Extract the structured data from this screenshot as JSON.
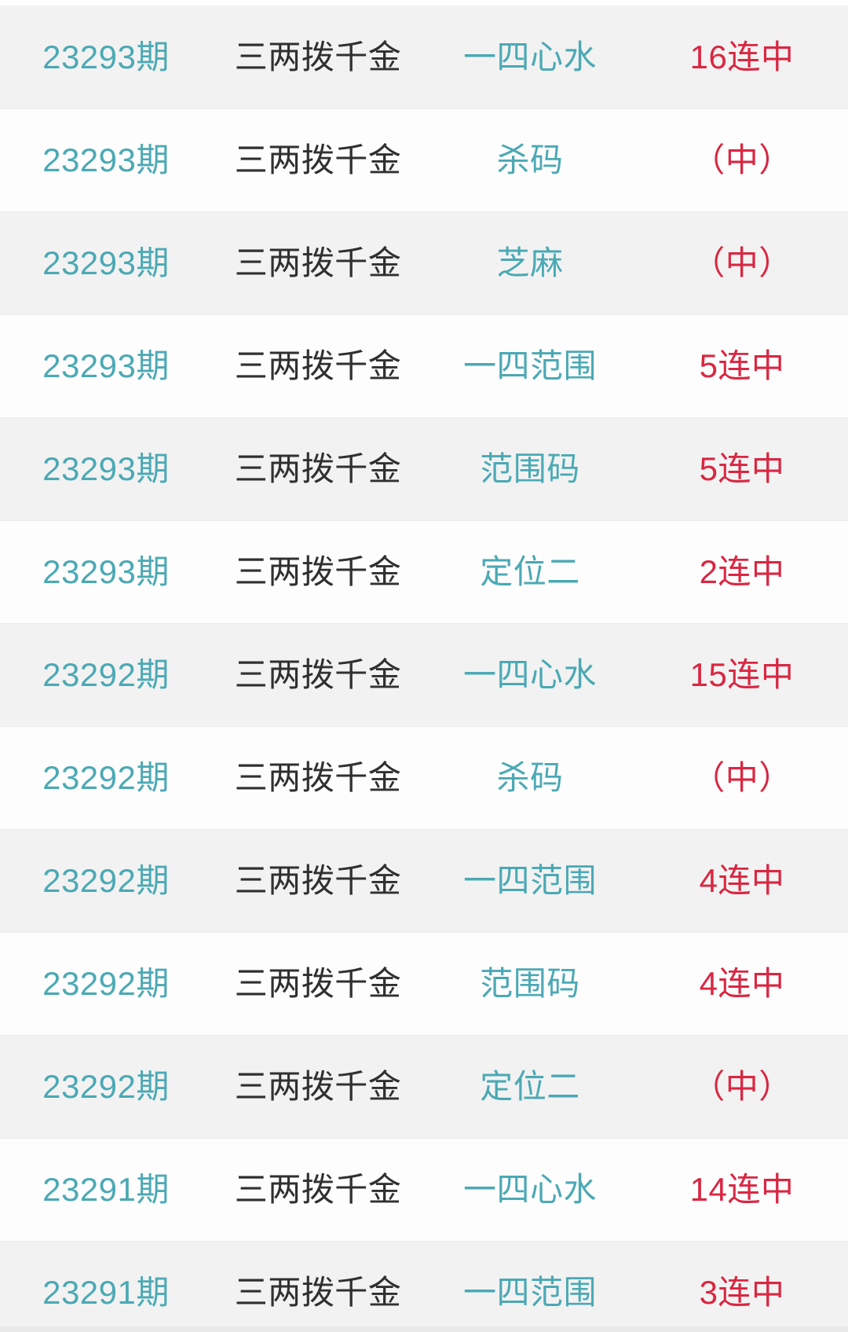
{
  "colors": {
    "teal": "#4ba9b4",
    "dark": "#303030",
    "red": "#d92742",
    "row_bg": "#fdfdfd",
    "row_alt_bg": "#f2f2f2",
    "divider": "#ebebeb",
    "strip": "#e9e9e9"
  },
  "table": {
    "rows": [
      {
        "period": "23293期",
        "name": "三两拨千金",
        "play": "一四心水",
        "result": "16连中"
      },
      {
        "period": "23293期",
        "name": "三两拨千金",
        "play": "杀码",
        "result": "（中）"
      },
      {
        "period": "23293期",
        "name": "三两拨千金",
        "play": "芝麻",
        "result": "（中）"
      },
      {
        "period": "23293期",
        "name": "三两拨千金",
        "play": "一四范围",
        "result": "5连中"
      },
      {
        "period": "23293期",
        "name": "三两拨千金",
        "play": "范围码",
        "result": "5连中"
      },
      {
        "period": "23293期",
        "name": "三两拨千金",
        "play": "定位二",
        "result": "2连中"
      },
      {
        "period": "23292期",
        "name": "三两拨千金",
        "play": "一四心水",
        "result": "15连中"
      },
      {
        "period": "23292期",
        "name": "三两拨千金",
        "play": "杀码",
        "result": "（中）"
      },
      {
        "period": "23292期",
        "name": "三两拨千金",
        "play": "一四范围",
        "result": "4连中"
      },
      {
        "period": "23292期",
        "name": "三两拨千金",
        "play": "范围码",
        "result": "4连中"
      },
      {
        "period": "23292期",
        "name": "三两拨千金",
        "play": "定位二",
        "result": "（中）"
      },
      {
        "period": "23291期",
        "name": "三两拨千金",
        "play": "一四心水",
        "result": "14连中"
      },
      {
        "period": "23291期",
        "name": "三两拨千金",
        "play": "一四范围",
        "result": "3连中"
      }
    ]
  }
}
